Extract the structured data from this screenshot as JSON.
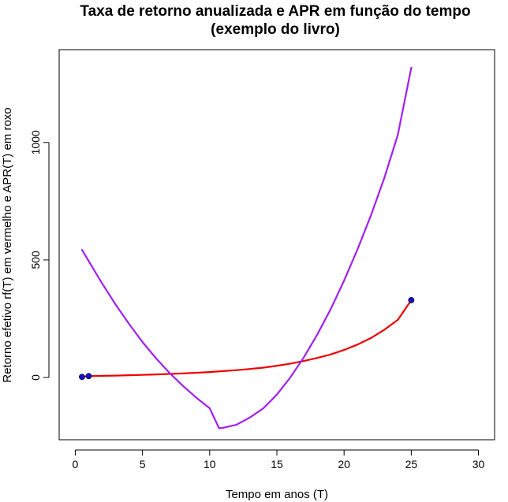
{
  "chart_data": {
    "type": "line",
    "title": "Taxa de retorno anualizada e APR em função do tempo",
    "subtitle": "(exemplo do livro)",
    "xlabel": "Tempo em anos (T)",
    "ylabel": "Retorno efetivo rf(T) em vermelho e APR(T) em roxo",
    "xlim": [
      -1.2,
      31.2
    ],
    "ylim": [
      -265,
      1395
    ],
    "xticks": [
      0,
      5,
      10,
      15,
      20,
      25,
      30
    ],
    "yticks": [
      0,
      500,
      1000
    ],
    "grid": false,
    "series": [
      {
        "color": "#ee0000",
        "x": [
          0.5,
          1,
          2,
          3,
          4,
          5,
          6,
          7,
          8,
          9,
          10,
          11,
          12,
          13,
          14,
          15,
          16,
          17,
          18,
          19,
          20,
          21,
          22,
          23,
          24,
          25
        ],
        "y": [
          2.5,
          5.8,
          7,
          8,
          9.5,
          11,
          13,
          15,
          17.5,
          20,
          23,
          27,
          31,
          36,
          42,
          50,
          59,
          70,
          83,
          98,
          117,
          140,
          168,
          203,
          245,
          329
        ]
      },
      {
        "color": "#a020f0",
        "x": [
          0.5,
          1,
          2,
          3,
          4,
          5,
          6,
          7,
          8,
          9,
          10,
          10.7,
          11,
          12,
          13,
          14,
          15,
          16,
          17,
          18,
          19,
          20,
          21,
          22,
          23,
          24,
          25
        ],
        "y": [
          543,
          495,
          400,
          310,
          228,
          151,
          82,
          20,
          -35,
          -86,
          -131,
          -216,
          -214,
          -201,
          -170,
          -131,
          -73,
          0,
          85,
          182,
          290,
          412,
          545,
          690,
          850,
          1032,
          1318
        ]
      }
    ],
    "points": {
      "color": "#1010cc",
      "x": [
        0.5,
        1,
        25
      ],
      "y": [
        2.5,
        5.8,
        329
      ]
    }
  }
}
